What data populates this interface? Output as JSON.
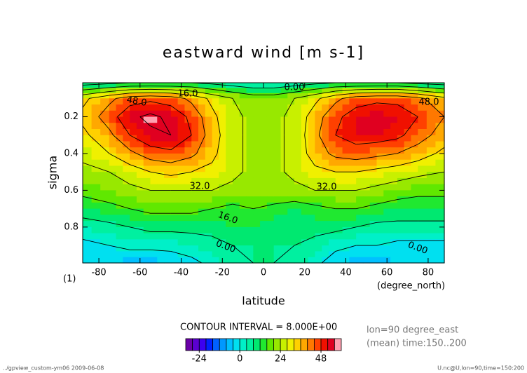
{
  "chart_data": {
    "type": "contour",
    "title": "eastward wind [m s-1]",
    "x_label": "latitude",
    "y_label": "sigma",
    "x_unit_label": "(degree_north)",
    "y_unit_label": "(1)",
    "x": [
      -85,
      -75,
      -65,
      -55,
      -45,
      -35,
      -25,
      -15,
      -5,
      5,
      15,
      25,
      35,
      45,
      55,
      65,
      75,
      85
    ],
    "y": [
      0.03,
      0.1,
      0.2,
      0.3,
      0.4,
      0.5,
      0.6,
      0.7,
      0.8,
      0.9,
      0.97
    ],
    "z": [
      [
        4,
        6,
        8,
        8,
        8,
        8,
        6,
        4,
        2,
        2,
        4,
        6,
        8,
        8,
        8,
        8,
        6,
        4
      ],
      [
        30,
        38,
        44,
        46,
        44,
        38,
        30,
        24,
        20,
        20,
        24,
        30,
        38,
        44,
        46,
        46,
        42,
        34
      ],
      [
        34,
        44,
        54,
        58,
        54,
        46,
        34,
        26,
        22,
        22,
        26,
        36,
        46,
        52,
        54,
        52,
        48,
        40
      ],
      [
        30,
        38,
        48,
        54,
        56,
        48,
        36,
        26,
        22,
        22,
        26,
        38,
        48,
        52,
        52,
        50,
        44,
        36
      ],
      [
        26,
        32,
        38,
        44,
        46,
        42,
        34,
        26,
        22,
        22,
        26,
        36,
        42,
        44,
        42,
        40,
        36,
        30
      ],
      [
        22,
        24,
        28,
        32,
        34,
        32,
        30,
        26,
        22,
        22,
        26,
        30,
        32,
        32,
        30,
        28,
        26,
        24
      ],
      [
        18,
        20,
        22,
        24,
        24,
        24,
        24,
        22,
        22,
        22,
        22,
        24,
        24,
        24,
        22,
        20,
        18,
        18
      ],
      [
        12,
        14,
        16,
        18,
        18,
        18,
        16,
        14,
        16,
        14,
        12,
        14,
        16,
        16,
        14,
        12,
        12,
        12
      ],
      [
        4,
        6,
        8,
        10,
        10,
        10,
        10,
        12,
        12,
        10,
        10,
        10,
        10,
        8,
        6,
        6,
        6,
        6
      ],
      [
        -2,
        0,
        2,
        2,
        2,
        4,
        6,
        8,
        8,
        8,
        8,
        6,
        2,
        0,
        0,
        -2,
        -2,
        -2
      ],
      [
        -4,
        -4,
        -6,
        -6,
        -4,
        -2,
        2,
        6,
        8,
        8,
        6,
        2,
        -4,
        -6,
        -6,
        -4,
        -4,
        -4
      ]
    ],
    "xlim": [
      -87.86,
      87.86
    ],
    "ylim": [
      0.995,
      0.015
    ],
    "xticks": [
      -80,
      -60,
      -40,
      -20,
      0,
      20,
      40,
      60,
      80
    ],
    "yticks": [
      0.2,
      0.4,
      0.6,
      0.8
    ],
    "levels": [
      -32,
      -28,
      -24,
      -20,
      -16,
      -12,
      -8,
      -4,
      0,
      4,
      8,
      12,
      16,
      20,
      24,
      28,
      32,
      36,
      40,
      44,
      48,
      52,
      56,
      60
    ],
    "colors": [
      "#6a00a8",
      "#5a00d0",
      "#3c00f0",
      "#0020ff",
      "#0060ff",
      "#0098ff",
      "#00c0ff",
      "#00e0f0",
      "#00f0c8",
      "#00f0a0",
      "#00e870",
      "#20e830",
      "#60e800",
      "#98e800",
      "#c8f000",
      "#f0f000",
      "#ffd000",
      "#ffa800",
      "#ff7800",
      "#ff4000",
      "#f01000",
      "#e00020",
      "#ffa0b0"
    ],
    "contour_levels": [
      -8,
      0,
      8,
      16,
      24,
      32,
      40,
      48,
      56
    ],
    "contour_labels": [
      {
        "value": 48,
        "label": "48.0"
      },
      {
        "value": 48,
        "label": "48.0"
      },
      {
        "value": 16,
        "label": "16.0"
      },
      {
        "value": 0,
        "label": "0.00"
      },
      {
        "value": 32,
        "label": "32.0"
      },
      {
        "value": 32,
        "label": "32.0"
      },
      {
        "value": 16,
        "label": "16.0"
      },
      {
        "value": 0,
        "label": "0.00"
      },
      {
        "value": 0,
        "label": "0.00"
      }
    ],
    "colorbar_ticks": [
      -24,
      0,
      24,
      48
    ],
    "contour_interval": "CONTOUR INTERVAL = 8.000E+00",
    "notes": [
      "lon=90 degree_east",
      "(mean) time:150..200"
    ],
    "footer_left": "../gpview_custom-ym06  2009-06-08",
    "footer_right": "U.nc@U,lon=90,time=150:200"
  }
}
